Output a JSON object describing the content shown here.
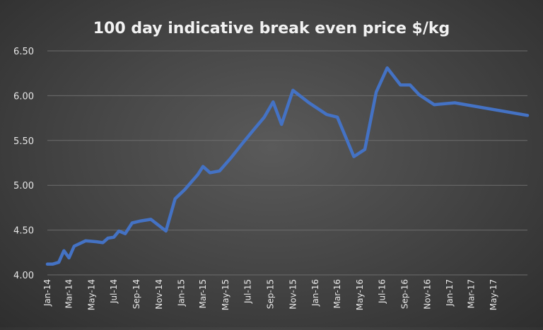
{
  "chart_data": {
    "type": "line",
    "title": "100 day indicative break even price $/kg",
    "xlabel": "",
    "ylabel": "",
    "ylim": [
      4.0,
      6.5
    ],
    "yticks": [
      "4.00",
      "4.50",
      "5.00",
      "5.50",
      "6.00",
      "6.50"
    ],
    "xtick_labels": [
      "Jan-14",
      "Mar-14",
      "May-14",
      "Jul-14",
      "Sep-14",
      "Nov-14",
      "Jan-15",
      "Mar-15",
      "May-15",
      "Jul-15",
      "Sep-15",
      "Nov-15",
      "Jan-16",
      "Mar-16",
      "May-16",
      "Jul-16",
      "Sep-16",
      "Nov-16",
      "Jan-17",
      "Mar-17",
      "May-17"
    ],
    "xlim": [
      "2014-01-01",
      "2017-08-01"
    ],
    "grid": true,
    "legend": "none",
    "colors": {
      "series": "#4472c4",
      "grid": "#6c6c6c",
      "text": "#e6e6e6"
    },
    "series": [
      {
        "points": [
          [
            "2014-01-01",
            4.12
          ],
          [
            "2014-01-15",
            4.12
          ],
          [
            "2014-02-01",
            4.14
          ],
          [
            "2014-02-15",
            4.27
          ],
          [
            "2014-03-01",
            4.19
          ],
          [
            "2014-03-15",
            4.32
          ],
          [
            "2014-04-15",
            4.38
          ],
          [
            "2014-05-15",
            4.37
          ],
          [
            "2014-06-01",
            4.36
          ],
          [
            "2014-06-15",
            4.41
          ],
          [
            "2014-07-01",
            4.42
          ],
          [
            "2014-07-15",
            4.49
          ],
          [
            "2014-08-01",
            4.46
          ],
          [
            "2014-08-20",
            4.58
          ],
          [
            "2014-09-10",
            4.6
          ],
          [
            "2014-10-10",
            4.62
          ],
          [
            "2014-11-20",
            4.49
          ],
          [
            "2014-12-15",
            4.85
          ],
          [
            "2015-01-10",
            4.95
          ],
          [
            "2015-02-15",
            5.12
          ],
          [
            "2015-03-01",
            5.21
          ],
          [
            "2015-03-20",
            5.14
          ],
          [
            "2015-04-15",
            5.16
          ],
          [
            "2015-05-15",
            5.3
          ],
          [
            "2015-06-15",
            5.46
          ],
          [
            "2015-07-15",
            5.61
          ],
          [
            "2015-08-15",
            5.76
          ],
          [
            "2015-09-08",
            5.93
          ],
          [
            "2015-10-01",
            5.68
          ],
          [
            "2015-11-01",
            6.06
          ],
          [
            "2015-12-15",
            5.92
          ],
          [
            "2016-02-01",
            5.79
          ],
          [
            "2016-03-01",
            5.76
          ],
          [
            "2016-04-15",
            5.32
          ],
          [
            "2016-05-15",
            5.4
          ],
          [
            "2016-06-15",
            6.04
          ],
          [
            "2016-07-15",
            6.31
          ],
          [
            "2016-08-20",
            6.12
          ],
          [
            "2016-09-15",
            6.12
          ],
          [
            "2016-10-10",
            6.01
          ],
          [
            "2016-11-20",
            5.9
          ],
          [
            "2017-01-15",
            5.92
          ],
          [
            "2017-08-01",
            5.78
          ]
        ]
      }
    ]
  }
}
